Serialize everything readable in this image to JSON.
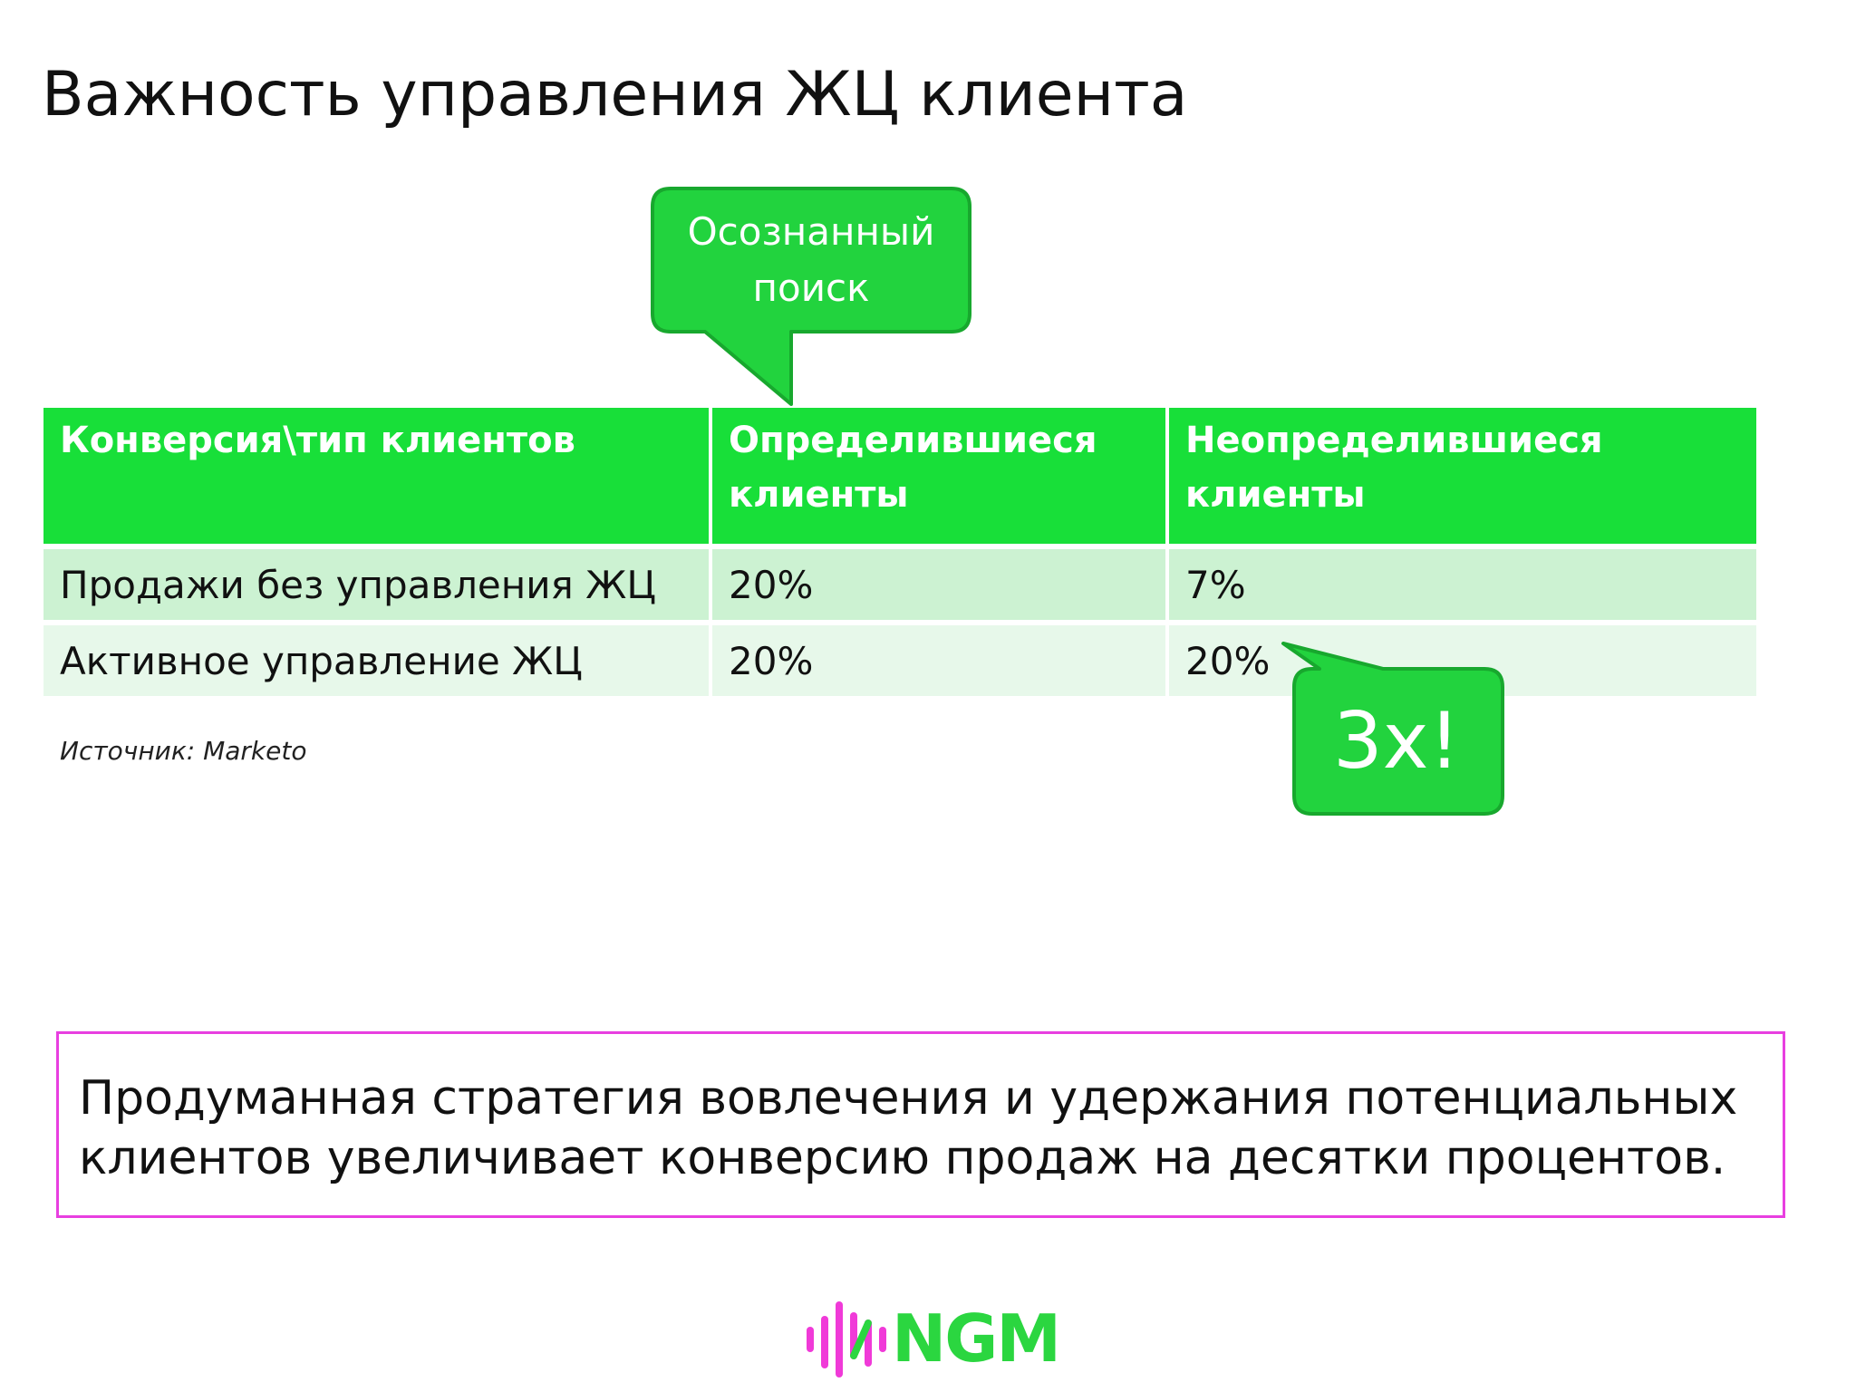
{
  "slide": {
    "title": "Важность управления ЖЦ клиента",
    "callout_search": {
      "line1": "Осознанный",
      "line2": "поиск"
    },
    "table": {
      "header": [
        {
          "line1": "Конверсия\\тип клиентов",
          "line2": ""
        },
        {
          "line1": "Определившиеся",
          "line2": "клиенты"
        },
        {
          "line1": "Неопределившиеся",
          "line2": "клиенты"
        }
      ],
      "rows": [
        {
          "label": "Продажи без управления ЖЦ",
          "defined": "20%",
          "undefined": "7%"
        },
        {
          "label": "Активное управление ЖЦ",
          "defined": "20%",
          "undefined": "20%"
        }
      ]
    },
    "source": "Источник: Marketo",
    "callout_3x": "3x!",
    "summary": {
      "line1": "Продуманная стратегия вовлечения и удержания потенциальных",
      "line2": "клиентов увеличивает конверсию продаж на десятки процентов."
    },
    "logo": {
      "text": "NGM",
      "icon": "sound-wave-logo-icon"
    },
    "colors": {
      "table_header": "#18df39",
      "row_1": "#ccf2d2",
      "row_2": "#e7f8ea",
      "callout_fill": "#22d33e",
      "callout_border": "#18a82e",
      "summary_border": "#e83fe0",
      "logo_pink": "#f03ad8",
      "logo_green": "#2bd640"
    }
  }
}
